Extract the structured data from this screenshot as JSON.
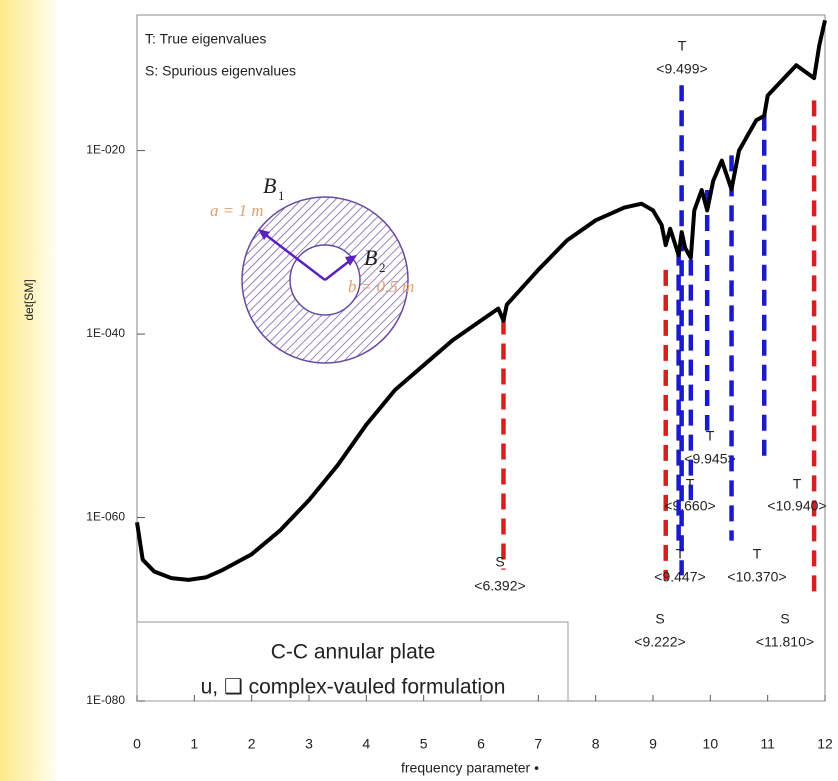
{
  "chart_data": {
    "type": "line",
    "log_y": true,
    "y_label": "det[SM]",
    "x_label": "frequency parameter •",
    "legend_lines": [
      "T: True eigenvalues",
      "S: Spurious eigenvalues"
    ],
    "caption_lines": [
      "C-C annular plate",
      "u, ❑ complex-vauled formulation"
    ],
    "inset": {
      "outer_symbol": "B",
      "outer_sub": "1",
      "outer_radius_label": "a = 1 m",
      "inner_symbol": "B",
      "inner_sub": "2",
      "inner_radius_label": "b = 0.5 m"
    },
    "color": "#000000",
    "x": [
      0,
      0.1,
      0.3,
      0.6,
      0.9,
      1.2,
      1.5,
      2,
      2.5,
      3,
      3.5,
      4,
      4.5,
      5,
      5.5,
      6,
      6.3,
      6.392,
      6.45,
      7,
      7.5,
      8,
      8.5,
      8.8,
      9.0,
      9.15,
      9.222,
      9.3,
      9.447,
      9.5,
      9.56,
      9.66,
      9.72,
      9.85,
      9.945,
      10.05,
      10.2,
      10.37,
      10.5,
      10.8,
      10.94,
      11.0,
      11.5,
      11.81,
      11.9,
      12
    ],
    "values": [
      3e-61,
      2.5e-65,
      1.3e-66,
      2.5e-67,
      1.6e-67,
      3e-67,
      2e-66,
      1e-64,
      4e-62,
      8e-59,
      5e-55,
      1.3e-50,
      8e-47,
      4e-44,
      2e-41,
      3e-39,
      6e-38,
      3e-39,
      1.6e-37,
      1e-33,
      1.6e-30,
      2.5e-28,
      6e-27,
      1.6e-26,
      3e-27,
      8e-29,
      5e-31,
      3e-29,
      4e-32,
      1.3e-29,
      2.5e-31,
      2e-32,
      3e-27,
      5e-25,
      3e-27,
      5e-24,
      8e-22,
      6e-25,
      1e-20,
      2e-17,
      6e-17,
      1e-14,
      2e-11,
      8e-13,
      3e-09,
      1.6e-06
    ],
    "markers": [
      {
        "kind": "S",
        "x": 6.392,
        "label": "<6.392>",
        "top": 5e-39,
        "bottom": 2e-66,
        "color": "#d62020"
      },
      {
        "kind": "S",
        "x": 9.222,
        "label": "<9.222>",
        "top": 1e-33,
        "bottom": 1.6e-67,
        "color": "#d62020"
      },
      {
        "kind": "S",
        "x": 11.81,
        "label": "<11.810>",
        "top": 3e-15,
        "bottom": 4e-69,
        "color": "#d62020"
      },
      {
        "kind": "T",
        "x": 9.499,
        "label": "<9.499>",
        "top": 1.3e-13,
        "bottom": 5e-67,
        "color": "#1a1acc"
      },
      {
        "kind": "T",
        "x": 9.945,
        "label": "<9.945>",
        "top": 5e-25,
        "bottom": 3e-51,
        "color": "#1a1acc"
      },
      {
        "kind": "T",
        "x": 9.66,
        "label": "<9.660>",
        "top": 1.3e-32,
        "bottom": 8e-59,
        "color": "#1a1acc"
      },
      {
        "kind": "T",
        "x": 10.37,
        "label": "<10.370>",
        "top": 3e-21,
        "bottom": 3e-63,
        "color": "#1a1acc"
      },
      {
        "kind": "T",
        "x": 10.94,
        "label": "<10.940>",
        "top": 8e-17,
        "bottom": 2e-54,
        "color": "#1a1acc"
      },
      {
        "kind": "T",
        "x": 9.447,
        "label": "<9.447>",
        "top": 1.6e-31,
        "bottom": 1e-63,
        "color": "#1a1acc"
      }
    ],
    "xlim": [
      0,
      12
    ],
    "xticks": [
      0,
      1,
      2,
      3,
      4,
      5,
      6,
      7,
      8,
      9,
      10,
      11,
      12
    ],
    "ylim": [
      1e-80,
      6e-06
    ],
    "yticks": [
      {
        "value": 1e-80,
        "label": "1E-080"
      },
      {
        "value": 1e-60,
        "label": "1E-060"
      },
      {
        "value": 1e-40,
        "label": "1E-040"
      },
      {
        "value": 1e-20,
        "label": "1E-020"
      }
    ]
  }
}
